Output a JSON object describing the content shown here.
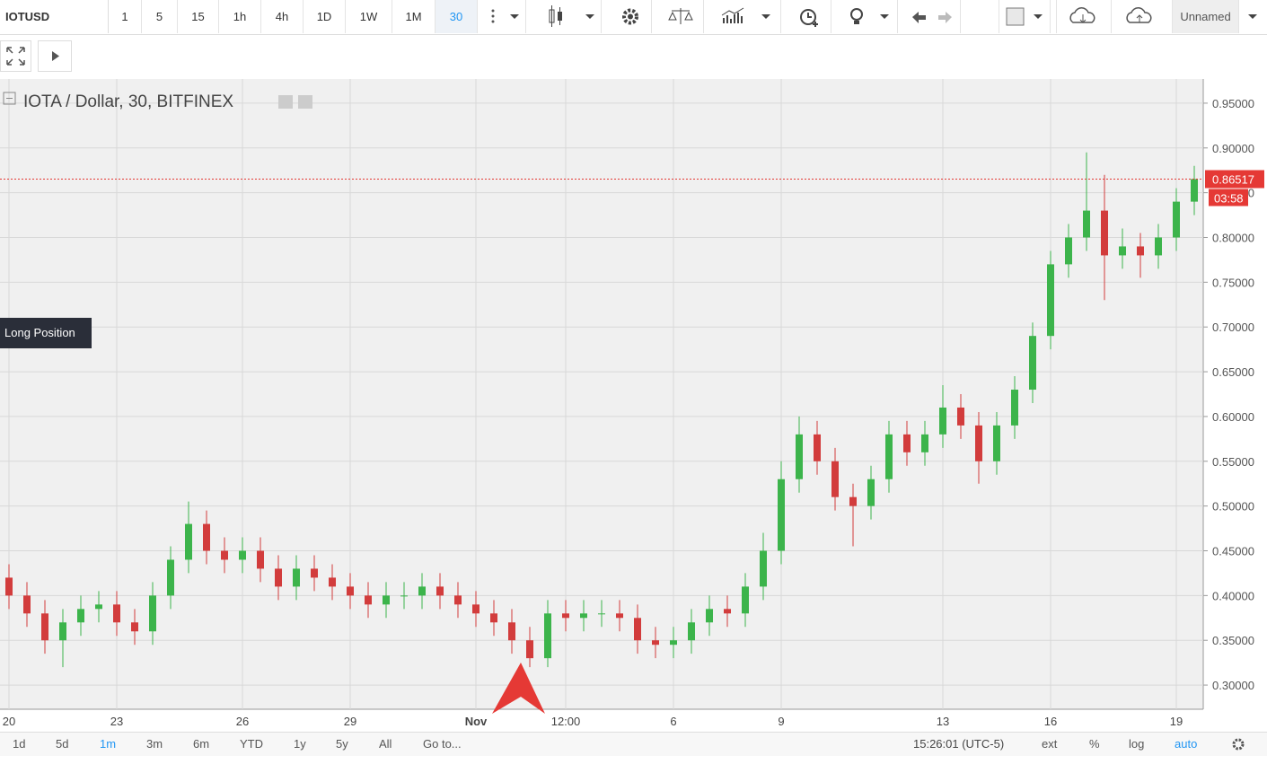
{
  "toolbar": {
    "symbol": "IOTUSD",
    "intervals": [
      "1",
      "5",
      "15",
      "1h",
      "4h",
      "1D",
      "1W",
      "1M",
      "30"
    ],
    "layout_name": "Unnamed"
  },
  "chart_data": {
    "type": "candlestick",
    "title": "IOTA / Dollar, 30, BITFINEX",
    "annotation": "Long Position",
    "countdown": "03:58",
    "categories": [
      "20",
      null,
      null,
      null,
      null,
      null,
      "23",
      null,
      null,
      null,
      null,
      null,
      null,
      "26",
      null,
      null,
      null,
      null,
      null,
      "29",
      null,
      null,
      null,
      null,
      null,
      null,
      "Nov",
      null,
      null,
      null,
      null,
      "12:00",
      null,
      null,
      null,
      null,
      null,
      "6",
      null,
      null,
      null,
      null,
      null,
      "9",
      null,
      null,
      null,
      null,
      null,
      null,
      null,
      null,
      "13",
      null,
      null,
      null,
      null,
      null,
      "16",
      null,
      null,
      null,
      null,
      null,
      null,
      "19",
      null
    ],
    "open": [
      0.42,
      0.4,
      0.38,
      0.35,
      0.37,
      0.385,
      0.39,
      0.37,
      0.36,
      0.4,
      0.44,
      0.48,
      0.45,
      0.44,
      0.45,
      0.43,
      0.41,
      0.43,
      0.42,
      0.41,
      0.4,
      0.39,
      0.4,
      0.4,
      0.41,
      0.4,
      0.39,
      0.38,
      0.37,
      0.35,
      0.33,
      0.38,
      0.375,
      0.38,
      0.38,
      0.375,
      0.35,
      0.345,
      0.35,
      0.37,
      0.385,
      0.38,
      0.41,
      0.45,
      0.53,
      0.58,
      0.55,
      0.51,
      0.5,
      0.53,
      0.58,
      0.56,
      0.58,
      0.61,
      0.59,
      0.55,
      0.59,
      0.63,
      0.69,
      0.77,
      0.8,
      0.83,
      0.78,
      0.79,
      0.78,
      0.8,
      0.84
    ],
    "high": [
      0.435,
      0.415,
      0.395,
      0.385,
      0.4,
      0.405,
      0.405,
      0.385,
      0.415,
      0.455,
      0.505,
      0.495,
      0.465,
      0.465,
      0.465,
      0.445,
      0.445,
      0.445,
      0.435,
      0.425,
      0.415,
      0.415,
      0.415,
      0.425,
      0.425,
      0.415,
      0.405,
      0.395,
      0.385,
      0.365,
      0.395,
      0.395,
      0.395,
      0.395,
      0.395,
      0.39,
      0.365,
      0.365,
      0.385,
      0.4,
      0.4,
      0.425,
      0.47,
      0.55,
      0.6,
      0.595,
      0.565,
      0.525,
      0.545,
      0.595,
      0.595,
      0.595,
      0.635,
      0.625,
      0.605,
      0.605,
      0.645,
      0.705,
      0.785,
      0.815,
      0.895,
      0.87,
      0.81,
      0.805,
      0.815,
      0.855,
      0.88
    ],
    "low": [
      0.385,
      0.365,
      0.335,
      0.32,
      0.355,
      0.37,
      0.355,
      0.345,
      0.345,
      0.385,
      0.425,
      0.435,
      0.425,
      0.425,
      0.415,
      0.395,
      0.395,
      0.405,
      0.395,
      0.385,
      0.375,
      0.375,
      0.385,
      0.385,
      0.385,
      0.375,
      0.365,
      0.355,
      0.335,
      0.32,
      0.32,
      0.36,
      0.36,
      0.365,
      0.36,
      0.335,
      0.33,
      0.33,
      0.335,
      0.355,
      0.365,
      0.365,
      0.395,
      0.435,
      0.515,
      0.535,
      0.495,
      0.455,
      0.485,
      0.515,
      0.545,
      0.545,
      0.565,
      0.575,
      0.525,
      0.535,
      0.575,
      0.615,
      0.675,
      0.755,
      0.785,
      0.73,
      0.765,
      0.755,
      0.765,
      0.785,
      0.825
    ],
    "close": [
      0.4,
      0.38,
      0.35,
      0.37,
      0.385,
      0.39,
      0.37,
      0.36,
      0.4,
      0.44,
      0.48,
      0.45,
      0.44,
      0.45,
      0.43,
      0.41,
      0.43,
      0.42,
      0.41,
      0.4,
      0.39,
      0.4,
      0.4,
      0.41,
      0.4,
      0.39,
      0.38,
      0.37,
      0.35,
      0.33,
      0.38,
      0.375,
      0.38,
      0.38,
      0.375,
      0.35,
      0.345,
      0.35,
      0.37,
      0.385,
      0.38,
      0.41,
      0.45,
      0.53,
      0.58,
      0.55,
      0.51,
      0.5,
      0.53,
      0.58,
      0.56,
      0.58,
      0.61,
      0.59,
      0.55,
      0.59,
      0.63,
      0.69,
      0.77,
      0.8,
      0.83,
      0.78,
      0.79,
      0.78,
      0.8,
      0.84,
      0.86517
    ],
    "up_color": "#3cb44b",
    "down_color": "#d23c3c",
    "grid": true,
    "ylim": [
      0.273,
      0.977
    ],
    "yticks": [
      {
        "value": 0.3,
        "label": "0.30000"
      },
      {
        "value": 0.35,
        "label": "0.35000"
      },
      {
        "value": 0.4,
        "label": "0.40000"
      },
      {
        "value": 0.45,
        "label": "0.45000"
      },
      {
        "value": 0.5,
        "label": "0.50000"
      },
      {
        "value": 0.55,
        "label": "0.55000"
      },
      {
        "value": 0.6,
        "label": "0.60000"
      },
      {
        "value": 0.65,
        "label": "0.65000"
      },
      {
        "value": 0.7,
        "label": "0.70000"
      },
      {
        "value": 0.75,
        "label": "0.75000"
      },
      {
        "value": 0.8,
        "label": "0.80000"
      },
      {
        "value": 0.85,
        "label": "0.85000"
      },
      {
        "value": 0.9,
        "label": "0.90000"
      },
      {
        "value": 0.95,
        "label": "0.95000"
      }
    ]
  },
  "bottom_bar": {
    "ranges": [
      "1d",
      "5d",
      "1m",
      "3m",
      "6m",
      "YTD",
      "1y",
      "5y",
      "All",
      "Go to..."
    ],
    "time": "15:26:01 (UTC-5)",
    "options": [
      "ext",
      "%",
      "log",
      "auto"
    ]
  }
}
